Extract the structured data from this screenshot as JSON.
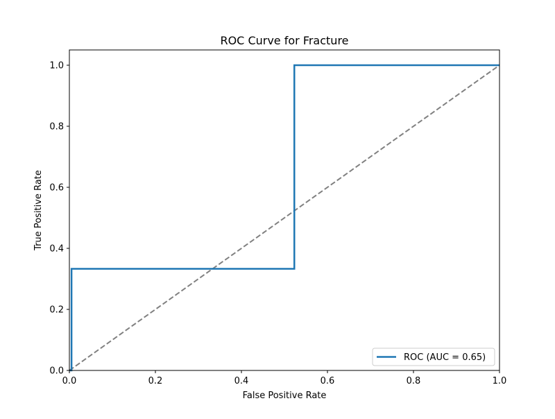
{
  "chart_data": {
    "type": "line",
    "title": "ROC Curve for Fracture",
    "xlabel": "False Positive Rate",
    "ylabel": "True Positive Rate",
    "xlim": [
      0.0,
      1.0
    ],
    "ylim": [
      0.0,
      1.05
    ],
    "xticks": [
      0.0,
      0.2,
      0.4,
      0.6,
      0.8,
      1.0
    ],
    "xtick_labels": [
      "0.0",
      "0.2",
      "0.4",
      "0.6",
      "0.8",
      "1.0"
    ],
    "yticks": [
      0.0,
      0.2,
      0.4,
      0.6,
      0.8,
      1.0
    ],
    "ytick_labels": [
      "0.0",
      "0.2",
      "0.4",
      "0.6",
      "0.8",
      "1.0"
    ],
    "grid": false,
    "legend_position": "lower right",
    "series": [
      {
        "name": "ROC (AUC = 0.65)",
        "color": "#1f77b4",
        "style": "solid",
        "x": [
          0.0,
          0.0,
          0.005,
          0.005,
          0.523,
          0.523,
          1.0
        ],
        "y": [
          0.0,
          0.0,
          0.0,
          0.333,
          0.333,
          1.0,
          1.0
        ]
      },
      {
        "color": "#808080",
        "style": "dashed",
        "x": [
          0.0,
          1.0
        ],
        "y": [
          0.0,
          1.0
        ]
      }
    ]
  }
}
